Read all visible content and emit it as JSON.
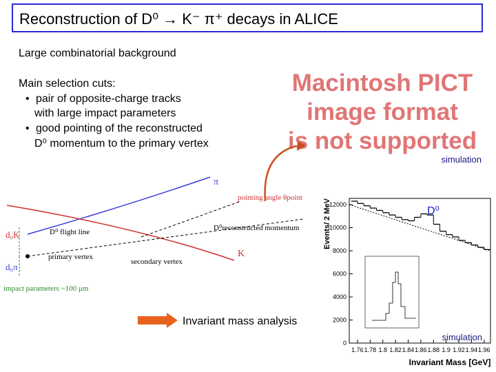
{
  "header": {
    "title": "Reconstruction of D⁰ → K⁻ π⁺ decays in ALICE"
  },
  "body": {
    "intro": "Large combinatorial background",
    "cuts_heading": "Main selection cuts:",
    "bullets": [
      [
        "pair of opposite-charge tracks",
        "with large impact parameters"
      ],
      [
        "good pointing of the reconstructed",
        "D⁰ momentum to the primary vertex"
      ]
    ]
  },
  "placeholder": {
    "lines": [
      "Macintosh PICT",
      "image format",
      "is not supported"
    ]
  },
  "diagram": {
    "pion": "π",
    "kaon": "K",
    "pointing_angle": "pointing angle θpoint",
    "flight_line": "D⁰ flight line",
    "momentum": "D⁰reconstructed momentum",
    "primary_vertex": "primary vertex",
    "secondary_vertex": "secondary vertex",
    "d0_pi": "d₀π",
    "d0_k": "d₀K",
    "impact": "impact parameters ~100 μm",
    "simulation": "simulation"
  },
  "analysis_label": "Invariant mass analysis",
  "chart_data": {
    "type": "histogram",
    "annotation": "D⁰",
    "note": "simulation",
    "x_label": "Invariant Mass [GeV]",
    "y_label": "Events/ 2 MeV",
    "bins": [
      1.75,
      1.76,
      1.77,
      1.78,
      1.79,
      1.8,
      1.81,
      1.82,
      1.83,
      1.84,
      1.85,
      1.86,
      1.87,
      1.88,
      1.89,
      1.9,
      1.91,
      1.92,
      1.93,
      1.94,
      1.95,
      1.96,
      1.97
    ],
    "values": [
      12300,
      12100,
      11900,
      11700,
      11500,
      11300,
      11100,
      10900,
      10700,
      10600,
      10900,
      11200,
      11100,
      10300,
      9700,
      9400,
      9200,
      8900,
      8700,
      8500,
      8300,
      8100
    ],
    "color": "#000000",
    "xlim": [
      1.747,
      1.97
    ],
    "ylim": [
      0,
      12540
    ],
    "xticks": [
      1.76,
      1.78,
      1.8,
      1.82,
      1.84,
      1.86,
      1.88,
      1.9,
      1.92,
      1.94,
      1.96
    ],
    "yticks": [
      0,
      2000,
      4000,
      6000,
      8000,
      10000,
      12000
    ]
  }
}
